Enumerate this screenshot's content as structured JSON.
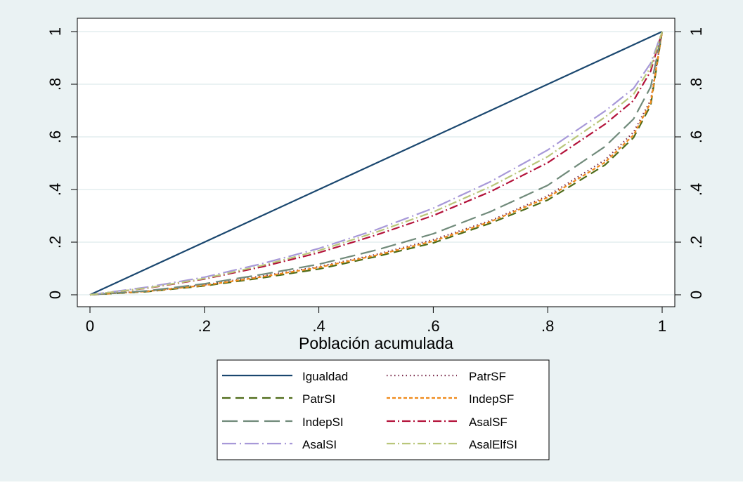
{
  "chart_data": {
    "type": "line",
    "title": "",
    "xlabel": "Población acumulada",
    "ylabel": "",
    "xlim": [
      0,
      1
    ],
    "ylim": [
      0,
      1
    ],
    "x_ticks": [
      "0",
      ".2",
      ".4",
      ".6",
      ".8",
      "1"
    ],
    "y_ticks": [
      "0",
      ".2",
      ".4",
      ".6",
      ".8",
      "1"
    ],
    "y_axis_right": true,
    "grid": "horizontal",
    "legend_position": "bottom",
    "x": [
      0,
      0.1,
      0.2,
      0.3,
      0.4,
      0.5,
      0.6,
      0.7,
      0.8,
      0.9,
      0.95,
      0.98,
      1.0
    ],
    "series": [
      {
        "name": "Igualdad",
        "color": "#1a476f",
        "dash": "solid",
        "values": [
          0,
          0.1,
          0.2,
          0.3,
          0.4,
          0.5,
          0.6,
          0.7,
          0.8,
          0.9,
          0.95,
          0.98,
          1.0
        ]
      },
      {
        "name": "PatrSF",
        "color": "#7a2a4a",
        "dash": "dot",
        "values": [
          0,
          0.014,
          0.038,
          0.071,
          0.107,
          0.153,
          0.209,
          0.282,
          0.376,
          0.512,
          0.618,
          0.74,
          1.0
        ]
      },
      {
        "name": "PatrSI",
        "color": "#4e6b18",
        "dash": "dash",
        "values": [
          0,
          0.012,
          0.034,
          0.064,
          0.098,
          0.145,
          0.197,
          0.272,
          0.36,
          0.493,
          0.597,
          0.72,
          1.0
        ]
      },
      {
        "name": "IndepSF",
        "color": "#f08a1a",
        "dash": "shortdash",
        "values": [
          0,
          0.013,
          0.036,
          0.068,
          0.104,
          0.15,
          0.204,
          0.278,
          0.37,
          0.503,
          0.607,
          0.73,
          1.0
        ]
      },
      {
        "name": "IndepSI",
        "color": "#708a7a",
        "dash": "longdash",
        "values": [
          0,
          0.015,
          0.042,
          0.077,
          0.116,
          0.17,
          0.232,
          0.316,
          0.416,
          0.563,
          0.668,
          0.79,
          1.0
        ]
      },
      {
        "name": "AsalSF",
        "color": "#b3123a",
        "dash": "dashdot",
        "values": [
          0,
          0.025,
          0.06,
          0.106,
          0.16,
          0.227,
          0.301,
          0.392,
          0.502,
          0.648,
          0.738,
          0.85,
          1.0
        ]
      },
      {
        "name": "AsalSI",
        "color": "#a798d8",
        "dash": "longdashdot",
        "values": [
          0,
          0.029,
          0.067,
          0.118,
          0.176,
          0.247,
          0.329,
          0.43,
          0.55,
          0.698,
          0.784,
          0.88,
          1.0
        ]
      },
      {
        "name": "AsalElfSI",
        "color": "#b9c67a",
        "dash": "dashdot",
        "values": [
          0,
          0.026,
          0.062,
          0.111,
          0.168,
          0.238,
          0.315,
          0.411,
          0.525,
          0.675,
          0.762,
          0.865,
          1.0
        ]
      }
    ]
  },
  "legend_layout": [
    [
      "Igualdad",
      "PatrSF"
    ],
    [
      "PatrSI",
      "IndepSF"
    ],
    [
      "IndepSI",
      "AsalSF"
    ],
    [
      "AsalSI",
      "AsalElfSI"
    ]
  ],
  "colors": {
    "outer_background": "#eaf2f3",
    "plot_background": "#ffffff",
    "grid": "#eaf2f3",
    "axis": "#000000"
  }
}
